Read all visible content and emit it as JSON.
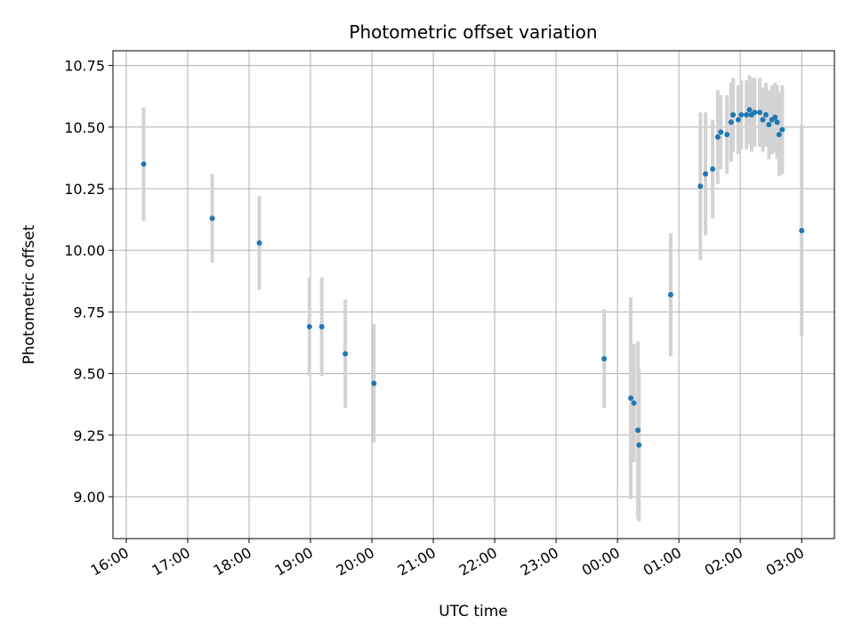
{
  "chart_data": {
    "type": "scatter",
    "title": "Photometric offset variation",
    "xlabel": "UTC time",
    "ylabel": "Photometric offset",
    "x_axis": "time",
    "x_ticks": [
      "16:00",
      "17:00",
      "18:00",
      "19:00",
      "20:00",
      "21:00",
      "22:00",
      "23:00",
      "00:00",
      "01:00",
      "02:00",
      "03:00"
    ],
    "xlim": [
      "15:47",
      "03:32"
    ],
    "y_ticks": [
      "9.00",
      "9.25",
      "9.50",
      "9.75",
      "10.00",
      "10.25",
      "10.50",
      "10.75"
    ],
    "ylim": [
      8.83,
      10.81
    ],
    "grid": true,
    "colors": {
      "marker": "#1f77b4",
      "errorbar": "#d3d3d3",
      "grid": "#b0b0b0"
    },
    "points": [
      {
        "t": "16:17",
        "y": 10.35,
        "err": 0.23
      },
      {
        "t": "17:24",
        "y": 10.13,
        "err": 0.18
      },
      {
        "t": "18:10",
        "y": 10.03,
        "err": 0.19
      },
      {
        "t": "18:59",
        "y": 9.69,
        "err": 0.2
      },
      {
        "t": "19:11",
        "y": 9.69,
        "err": 0.2
      },
      {
        "t": "19:34",
        "y": 9.58,
        "err": 0.22
      },
      {
        "t": "20:02",
        "y": 9.46,
        "err": 0.24
      },
      {
        "t": "23:47",
        "y": 9.56,
        "err": 0.2
      },
      {
        "t": "00:13",
        "y": 9.4,
        "err": 0.41
      },
      {
        "t": "00:16",
        "y": 9.38,
        "err": 0.24
      },
      {
        "t": "00:20",
        "y": 9.27,
        "err": 0.36
      },
      {
        "t": "00:21",
        "y": 9.21,
        "err": 0.31
      },
      {
        "t": "00:52",
        "y": 9.82,
        "err": 0.25
      },
      {
        "t": "01:21",
        "y": 10.26,
        "err": 0.3
      },
      {
        "t": "01:26",
        "y": 10.31,
        "err": 0.25
      },
      {
        "t": "01:33",
        "y": 10.33,
        "err": 0.2
      },
      {
        "t": "01:38",
        "y": 10.46,
        "err": 0.19
      },
      {
        "t": "01:41",
        "y": 10.48,
        "err": 0.15
      },
      {
        "t": "01:47",
        "y": 10.47,
        "err": 0.16
      },
      {
        "t": "01:51",
        "y": 10.52,
        "err": 0.16
      },
      {
        "t": "01:53",
        "y": 10.55,
        "err": 0.15
      },
      {
        "t": "01:58",
        "y": 10.53,
        "err": 0.14
      },
      {
        "t": "02:01",
        "y": 10.55,
        "err": 0.14
      },
      {
        "t": "02:06",
        "y": 10.55,
        "err": 0.14
      },
      {
        "t": "02:09",
        "y": 10.57,
        "err": 0.14
      },
      {
        "t": "02:11",
        "y": 10.55,
        "err": 0.15
      },
      {
        "t": "02:14",
        "y": 10.56,
        "err": 0.14
      },
      {
        "t": "02:19",
        "y": 10.56,
        "err": 0.14
      },
      {
        "t": "02:22",
        "y": 10.53,
        "err": 0.13
      },
      {
        "t": "02:25",
        "y": 10.55,
        "err": 0.13
      },
      {
        "t": "02:28",
        "y": 10.51,
        "err": 0.14
      },
      {
        "t": "02:31",
        "y": 10.53,
        "err": 0.14
      },
      {
        "t": "02:34",
        "y": 10.54,
        "err": 0.14
      },
      {
        "t": "02:36",
        "y": 10.52,
        "err": 0.15
      },
      {
        "t": "02:38",
        "y": 10.47,
        "err": 0.17
      },
      {
        "t": "02:41",
        "y": 10.49,
        "err": 0.18
      },
      {
        "t": "03:00",
        "y": 10.08,
        "err": 0.43
      }
    ]
  }
}
